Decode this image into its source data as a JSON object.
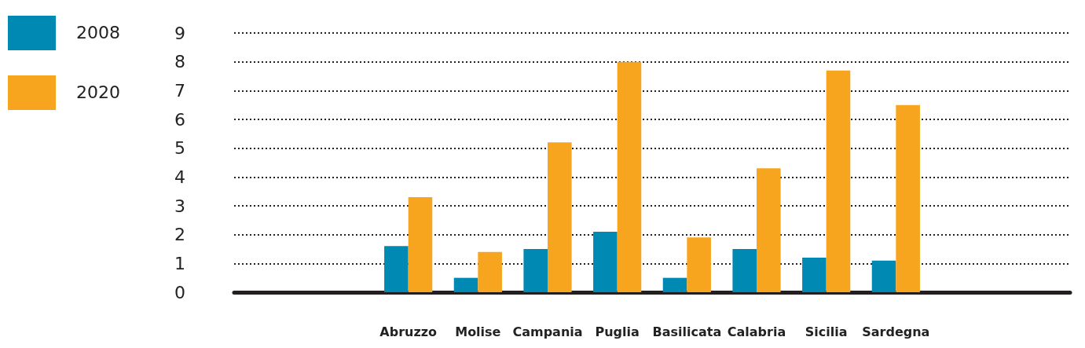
{
  "chart_data": {
    "type": "bar",
    "categories": [
      null,
      null,
      "Abruzzo",
      "Molise",
      "Campania",
      "Puglia",
      "Basilicata",
      "Calabria",
      "Sicilia",
      "Sardegna",
      null,
      null
    ],
    "series": [
      {
        "name": "2008",
        "color": "#0089b3",
        "values": [
          null,
          null,
          1.6,
          0.5,
          1.5,
          2.1,
          0.5,
          1.5,
          1.2,
          1.1,
          null,
          null
        ]
      },
      {
        "name": "2020",
        "color": "#f7a51e",
        "values": [
          null,
          null,
          3.3,
          1.4,
          5.2,
          8.0,
          1.9,
          4.3,
          7.7,
          6.5,
          null,
          null
        ]
      }
    ],
    "ylim": [
      0,
      9
    ],
    "yticks": [
      0,
      1,
      2,
      3,
      4,
      5,
      6,
      7,
      8,
      9
    ],
    "grid": "y",
    "legend": "left"
  }
}
